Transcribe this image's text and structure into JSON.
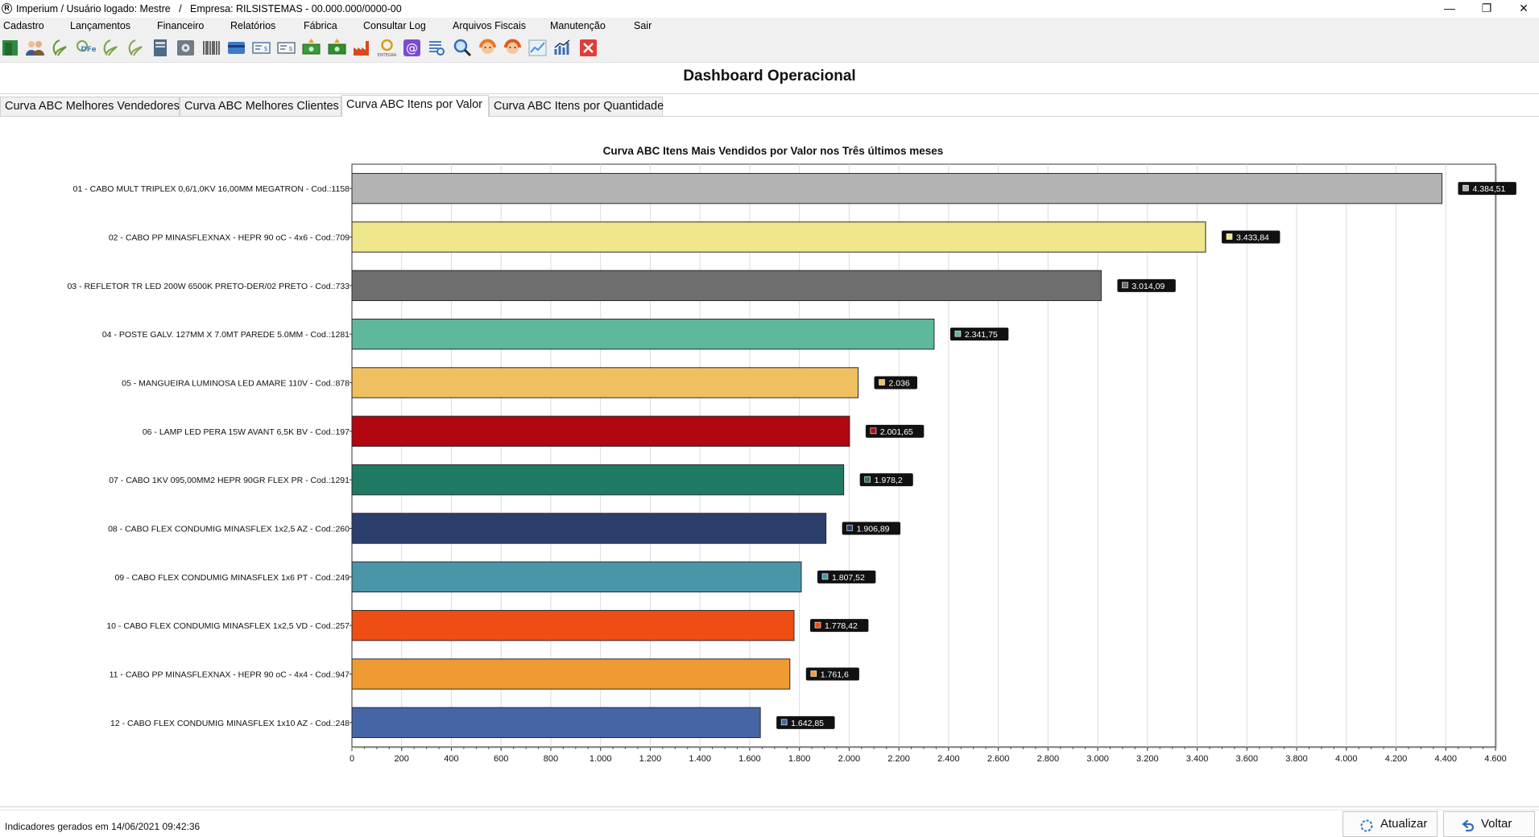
{
  "window": {
    "title": "Imperium / Usuário logado: Mestre   /   Empresa: RILSISTEMAS - 00.000.000/0000-00",
    "minimize_glyph": "—",
    "maximize_glyph": "❐",
    "close_glyph": "✕"
  },
  "menu": [
    "Cadastro",
    "Lançamentos",
    "Financeiro",
    "Relatórios",
    "Fábrica",
    "Consultar Log",
    "Arquivos Fiscais",
    "Manutenção",
    "Sair"
  ],
  "toolbar": {
    "icons": [
      {
        "name": "exit-door-icon",
        "color": "#2e8b3e"
      },
      {
        "name": "users-icon",
        "color": "#3a5d8f"
      },
      {
        "name": "nfe-icon",
        "color": "#6a9a3a"
      },
      {
        "name": "dfe-icon",
        "color": "#4a7fc1"
      },
      {
        "name": "nfse-icon",
        "color": "#7aa84a"
      },
      {
        "name": "cte-icon",
        "color": "#8aa85a"
      },
      {
        "name": "report-book-icon",
        "color": "#4d6a88"
      },
      {
        "name": "safe-icon",
        "color": "#6f7b86"
      },
      {
        "name": "barcode-icon",
        "color": "#444444"
      },
      {
        "name": "card-icon",
        "color": "#3d7ac9"
      },
      {
        "name": "check-payment-icon",
        "color": "#5577aa"
      },
      {
        "name": "bill-icon",
        "color": "#667788"
      },
      {
        "name": "cash-up-icon",
        "color": "#3a9a3a"
      },
      {
        "name": "cash-down-icon",
        "color": "#2f8f2f"
      },
      {
        "name": "factory-icon",
        "color": "#d84a1a"
      },
      {
        "name": "integration-icon",
        "color": "#d4a017"
      },
      {
        "name": "email-icon",
        "color": "#7b4bd0"
      },
      {
        "name": "search-list-icon",
        "color": "#4a7fc1"
      },
      {
        "name": "search-icon",
        "color": "#2f6fbf"
      },
      {
        "name": "support-agent-icon",
        "color": "#e8782a"
      },
      {
        "name": "support-agent-female-icon",
        "color": "#e05a1a"
      },
      {
        "name": "dashboard-line-icon",
        "color": "#4a90d9"
      },
      {
        "name": "dashboard-bar-icon",
        "color": "#3a6fb0"
      },
      {
        "name": "close-icon",
        "color": "#e23b3b"
      }
    ],
    "integration_caption": "ENTEGRA",
    "dfe_caption": "DFe"
  },
  "header": {
    "title": "Dashboard Operacional"
  },
  "tabs": [
    {
      "label": "Curva ABC Melhores Vendedores",
      "active": false
    },
    {
      "label": "Curva ABC Melhores Clientes",
      "active": false
    },
    {
      "label": "Curva ABC Itens por Valor",
      "active": true
    },
    {
      "label": "Curva ABC Itens por Quantidade",
      "active": false
    }
  ],
  "chart_data": {
    "type": "bar",
    "orientation": "horizontal",
    "title": "Curva ABC Itens Mais Vendidos por Valor nos Três últimos meses",
    "xlabel": "",
    "ylabel": "",
    "xlim": [
      0,
      4600
    ],
    "x_ticks": [
      "0",
      "200",
      "400",
      "600",
      "800",
      "1.000",
      "1.200",
      "1.400",
      "1.600",
      "1.800",
      "2.000",
      "2.200",
      "2.400",
      "2.600",
      "2.800",
      "3.000",
      "3.200",
      "3.400",
      "3.600",
      "3.800",
      "4.000",
      "4.200",
      "4.400",
      "4.600"
    ],
    "grid": true,
    "legend": "none",
    "categories": [
      "01 - CABO MULT TRIPLEX 0,6/1,0KV 16,00MM MEGATRON - Cod.:1158",
      "02 - CABO PP MINASFLEXNAX - HEPR 90 oC - 4x6  - Cod.:709",
      "03 - REFLETOR TR LED 200W 6500K PRETO-DER/02 PRETO - Cod.:733",
      "04 - POSTE GALV. 127MM X 7.0MT PAREDE 5.0MM - Cod.:1281",
      "05 - MANGUEIRA LUMINOSA LED AMARE 110V - Cod.:878",
      "06 - LAMP LED PERA 15W AVANT 6,5K BV - Cod.:197",
      "07 - CABO 1KV 095,00MM2 HEPR 90GR FLEX PR - Cod.:1291",
      "08 - CABO FLEX CONDUMIG MINASFLEX 1x2,5 AZ - Cod.:260",
      "09 - CABO FLEX CONDUMIG MINASFLEX 1x6 PT - Cod.:249",
      "10 - CABO FLEX CONDUMIG MINASFLEX 1x2,5 VD - Cod.:257",
      "11 - CABO PP MINASFLEXNAX - HEPR 90 oC - 4x4  - Cod.:947",
      "12 - CABO FLEX CONDUMIG MINASFLEX 1x10 AZ - Cod.:248"
    ],
    "values": [
      4384.51,
      3433.84,
      3014.09,
      2341.75,
      2036,
      2001.65,
      1978.2,
      1906.89,
      1807.52,
      1778.42,
      1761.6,
      1642.85
    ],
    "value_labels": [
      "4.384,51",
      "3.433,84",
      "3.014,09",
      "2.341,75",
      "2.036",
      "2.001,65",
      "1.978,2",
      "1.906,89",
      "1.807,52",
      "1.778,42",
      "1.761,6",
      "1.642,85"
    ],
    "colors": [
      "#b3b3b3",
      "#f0e68c",
      "#6e6e6e",
      "#5fb89c",
      "#f0c060",
      "#b20710",
      "#1e7a62",
      "#2c3e6b",
      "#4a96a8",
      "#ee4d14",
      "#f09a34",
      "#4565a5"
    ]
  },
  "footer": {
    "status": "Indicadores gerados em 14/06/2021 09:42:36",
    "refresh_label": "Atualizar",
    "back_label": "Voltar"
  }
}
